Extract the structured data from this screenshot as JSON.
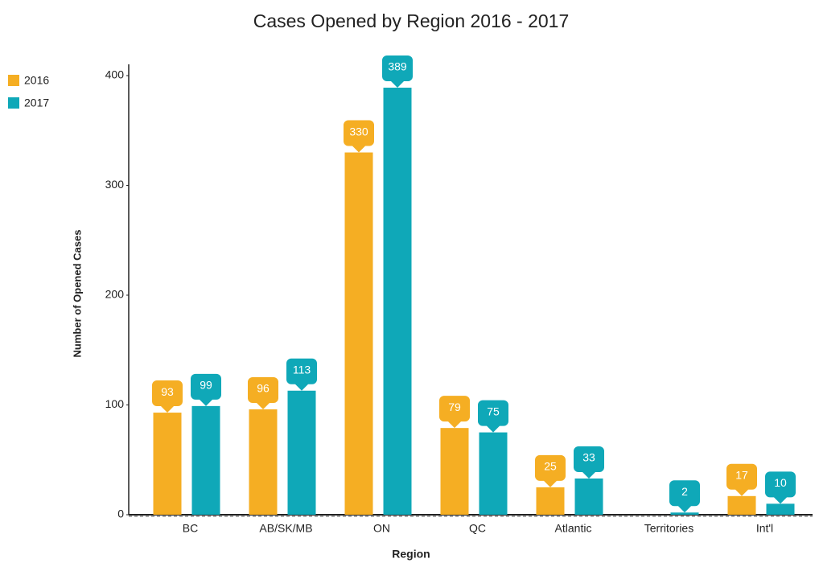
{
  "chart_data": {
    "type": "bar",
    "title": "Cases Opened by Region 2016 - 2017",
    "x_label": "Region",
    "y_label": "Number of Opened Cases",
    "categories": [
      "BC",
      "AB/SK/MB",
      "ON",
      "QC",
      "Atlantic",
      "Territories",
      "Int'l"
    ],
    "series": [
      {
        "name": "2016",
        "color": "#f5ae23",
        "values": [
          93,
          96,
          330,
          79,
          25,
          null,
          17
        ]
      },
      {
        "name": "2017",
        "color": "#0fa8b8",
        "values": [
          99,
          113,
          389,
          75,
          33,
          2,
          10
        ]
      }
    ],
    "ylim": [
      0,
      400
    ],
    "yticks": [
      0,
      100,
      200,
      300,
      400
    ],
    "legend": "top-left"
  }
}
